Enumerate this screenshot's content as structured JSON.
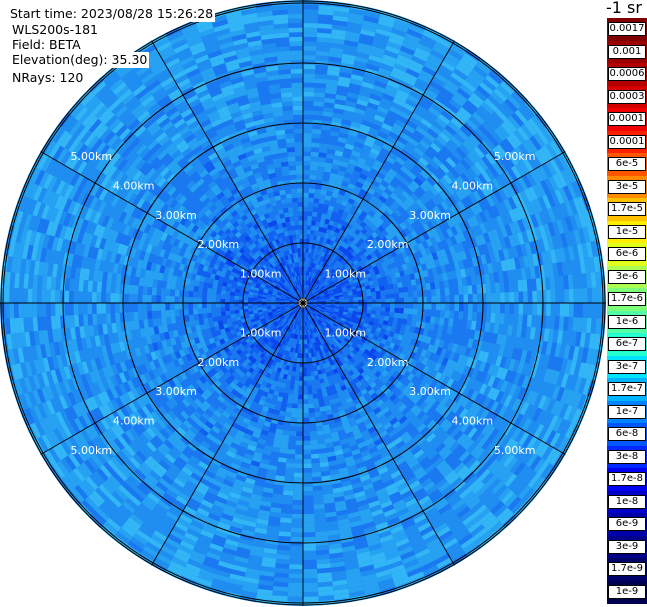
{
  "info": {
    "start_time": "Start time: 2023/08/28 15:26:28",
    "instrument": "WLS200s-181",
    "field": "Field: BETA",
    "elevation": "Elevation(deg): 35.30",
    "nrays": "NRays: 120"
  },
  "colorbar": {
    "unit": "-1 sr",
    "labels": [
      "0.0017",
      "0.001",
      "0.0006",
      "0.0003",
      "0.00017",
      "0.0001",
      "6e-5",
      "3e-5",
      "1.7e-5",
      "1e-5",
      "6e-6",
      "3e-6",
      "1.7e-6",
      "1e-6",
      "6e-7",
      "3e-7",
      "1.7e-7",
      "1e-7",
      "6e-8",
      "3e-8",
      "1.7e-8",
      "1e-8",
      "6e-9",
      "3e-9",
      "1.7e-9",
      "1e-9"
    ],
    "colors": [
      "#7f0000",
      "#9a0000",
      "#b50000",
      "#d40000",
      "#f00000",
      "#ff2000",
      "#ff5500",
      "#ff8a00",
      "#ffc000",
      "#ffee00",
      "#e0ff1a",
      "#aaff50",
      "#7dff7a",
      "#50ffa6",
      "#26ffd0",
      "#00e4ff",
      "#00b4ff",
      "#0084ff",
      "#0056ff",
      "#0028ff",
      "#0000f0",
      "#0000c8",
      "#0000a8",
      "#000088",
      "#00006a",
      "#000050"
    ]
  },
  "chart_data": {
    "type": "heatmap",
    "projection": "polar PPI",
    "range_rings_km": [
      1,
      2,
      3,
      4,
      5
    ],
    "ring_labels": [
      "1.00km",
      "2.00km",
      "3.00km",
      "4.00km",
      "5.00km"
    ],
    "n_rays": 120,
    "azimuth_spokes_deg": [
      0,
      30,
      60,
      90,
      120,
      150,
      180,
      210,
      240,
      270,
      300,
      330
    ],
    "dominant_value_range": [
      "1e-8",
      "6e-8"
    ],
    "colors": {
      "low": "#0a3cf0",
      "mid": "#1f8ef0",
      "high": "#33b6f6"
    }
  }
}
